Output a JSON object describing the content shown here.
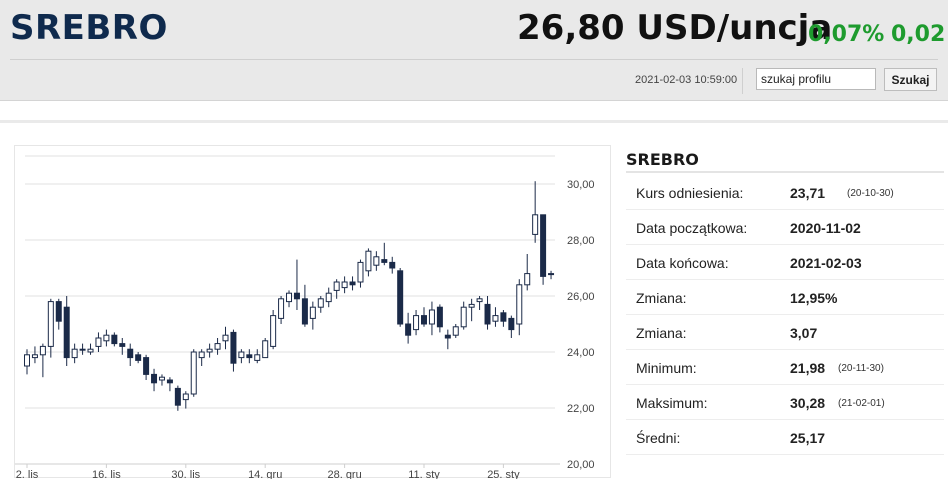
{
  "header": {
    "title": "SREBRO",
    "price": "26,80 USD/uncja",
    "change_pct": "0,07%",
    "change_abs": "0,02",
    "timestamp": "2021-02-03 10:59:00",
    "search_value": "szukaj profilu",
    "search_button": "Szukaj"
  },
  "colors": {
    "up": "#1e9b2e",
    "title": "#0f2a4d",
    "bear_candle": "#1b2a48"
  },
  "stats": {
    "title": "SREBRO",
    "rows": [
      {
        "label": "Kurs odniesienia:",
        "value": "23,71",
        "note": "(20-10-30)"
      },
      {
        "label": "Data początkowa:",
        "value": "2020-11-02",
        "note": ""
      },
      {
        "label": "Data końcowa:",
        "value": "2021-02-03",
        "note": ""
      },
      {
        "label": "Zmiana:",
        "value": "12,95%",
        "note": ""
      },
      {
        "label": "Zmiana:",
        "value": "3,07",
        "note": ""
      },
      {
        "label": "Minimum:",
        "value": "21,98",
        "note": "(20-11-30)"
      },
      {
        "label": "Maksimum:",
        "value": "30,28",
        "note": "(21-02-01)"
      },
      {
        "label": "Średni:",
        "value": "25,17",
        "note": ""
      }
    ]
  },
  "chart_data": {
    "type": "candlestick",
    "ylim": [
      20,
      31
    ],
    "yticks": [
      "30,00",
      "28,00",
      "26,00",
      "24,00",
      "22,00",
      "20,00"
    ],
    "xticks": [
      "2. lis",
      "16. lis",
      "30. lis",
      "14. gru",
      "28. gru",
      "11. sty",
      "25. sty"
    ],
    "candles": [
      [
        23.5,
        24.1,
        23.2,
        23.9
      ],
      [
        23.8,
        24.2,
        23.6,
        23.9
      ],
      [
        23.9,
        24.3,
        23.1,
        24.2
      ],
      [
        24.2,
        25.9,
        23.8,
        25.8
      ],
      [
        25.8,
        25.9,
        24.8,
        25.1
      ],
      [
        25.6,
        26.0,
        23.5,
        23.8
      ],
      [
        23.8,
        24.3,
        23.6,
        24.1
      ],
      [
        24.1,
        24.3,
        23.9,
        24.1
      ],
      [
        24.0,
        24.3,
        23.9,
        24.1
      ],
      [
        24.2,
        24.7,
        24.0,
        24.5
      ],
      [
        24.4,
        24.8,
        24.2,
        24.6
      ],
      [
        24.6,
        24.7,
        24.2,
        24.3
      ],
      [
        24.3,
        24.5,
        23.9,
        24.2
      ],
      [
        24.1,
        24.3,
        23.5,
        23.8
      ],
      [
        23.9,
        24.0,
        23.6,
        23.7
      ],
      [
        23.8,
        23.9,
        23.0,
        23.2
      ],
      [
        23.2,
        23.4,
        22.6,
        22.9
      ],
      [
        23.0,
        23.2,
        22.8,
        23.1
      ],
      [
        23.0,
        23.1,
        22.6,
        22.9
      ],
      [
        22.7,
        22.8,
        21.9,
        22.1
      ],
      [
        22.3,
        22.6,
        21.98,
        22.5
      ],
      [
        22.5,
        24.1,
        22.4,
        24.0
      ],
      [
        23.8,
        24.1,
        23.5,
        24.0
      ],
      [
        24.0,
        24.3,
        23.8,
        24.1
      ],
      [
        24.1,
        24.5,
        23.9,
        24.3
      ],
      [
        24.4,
        24.9,
        24.1,
        24.6
      ],
      [
        24.7,
        24.8,
        23.3,
        23.6
      ],
      [
        23.8,
        24.1,
        23.6,
        24.0
      ],
      [
        23.9,
        24.1,
        23.6,
        23.8
      ],
      [
        23.7,
        24.1,
        23.6,
        23.9
      ],
      [
        23.8,
        24.5,
        23.8,
        24.4
      ],
      [
        24.2,
        25.5,
        24.1,
        25.3
      ],
      [
        25.2,
        26.0,
        25.0,
        25.9
      ],
      [
        25.8,
        26.2,
        25.6,
        26.1
      ],
      [
        26.1,
        27.3,
        25.5,
        25.9
      ],
      [
        25.9,
        26.4,
        24.9,
        25.0
      ],
      [
        25.2,
        25.8,
        24.8,
        25.6
      ],
      [
        25.6,
        26.0,
        25.4,
        25.9
      ],
      [
        25.8,
        26.3,
        25.6,
        26.1
      ],
      [
        26.2,
        26.6,
        25.9,
        26.5
      ],
      [
        26.3,
        26.7,
        26.1,
        26.5
      ],
      [
        26.5,
        26.7,
        26.2,
        26.4
      ],
      [
        26.5,
        27.3,
        26.3,
        27.2
      ],
      [
        26.9,
        27.7,
        26.7,
        27.6
      ],
      [
        27.1,
        27.6,
        26.9,
        27.4
      ],
      [
        27.3,
        27.9,
        27.1,
        27.2
      ],
      [
        27.2,
        27.4,
        26.8,
        27.0
      ],
      [
        26.9,
        27.0,
        24.9,
        25.0
      ],
      [
        25.0,
        25.4,
        24.3,
        24.6
      ],
      [
        24.8,
        25.5,
        24.6,
        25.3
      ],
      [
        25.3,
        25.6,
        24.9,
        25.0
      ],
      [
        25.0,
        25.8,
        24.6,
        25.5
      ],
      [
        25.6,
        25.7,
        24.7,
        24.9
      ],
      [
        24.6,
        24.8,
        24.1,
        24.5
      ],
      [
        24.6,
        25.0,
        24.5,
        24.9
      ],
      [
        24.9,
        25.8,
        24.8,
        25.6
      ],
      [
        25.6,
        25.9,
        25.1,
        25.7
      ],
      [
        25.8,
        26.0,
        25.5,
        25.9
      ],
      [
        25.7,
        26.0,
        24.8,
        25.0
      ],
      [
        25.1,
        25.6,
        24.9,
        25.3
      ],
      [
        25.4,
        25.5,
        24.9,
        25.1
      ],
      [
        25.2,
        25.3,
        24.5,
        24.8
      ],
      [
        25.0,
        26.6,
        24.6,
        26.4
      ],
      [
        26.4,
        27.5,
        26.2,
        26.8
      ],
      [
        28.2,
        30.1,
        27.9,
        28.9
      ],
      [
        28.9,
        28.9,
        26.4,
        26.7
      ],
      [
        26.78,
        26.9,
        26.6,
        26.8
      ]
    ]
  }
}
